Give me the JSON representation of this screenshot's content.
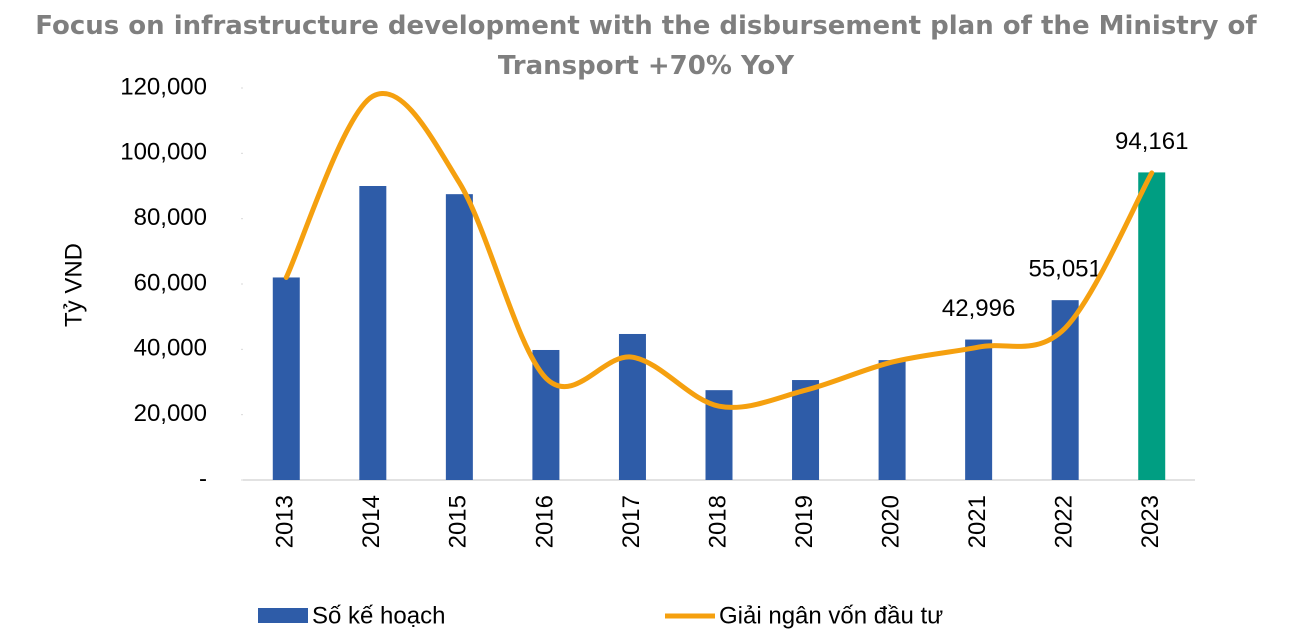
{
  "chart_data": {
    "type": "bar-line",
    "title": "Focus on infrastructure development with the disbursement plan of the Ministry of Transport +70% YoY",
    "ylabel": "Tỷ VND",
    "categories": [
      "2013",
      "2014",
      "2015",
      "2016",
      "2017",
      "2018",
      "2019",
      "2020",
      "2021",
      "2022",
      "2023"
    ],
    "series": [
      {
        "name": "Số kế hoạch",
        "type": "bar",
        "color": "#2e5ca8",
        "colors": [
          "#2e5ca8",
          "#2e5ca8",
          "#2e5ca8",
          "#2e5ca8",
          "#2e5ca8",
          "#2e5ca8",
          "#2e5ca8",
          "#2e5ca8",
          "#2e5ca8",
          "#2e5ca8",
          "#009e82"
        ],
        "values": [
          62000,
          90000,
          87500,
          39800,
          44700,
          27500,
          30600,
          36700,
          42996,
          55051,
          94161
        ],
        "value_labels": [
          null,
          null,
          null,
          null,
          null,
          null,
          null,
          null,
          "42,996",
          "55,051",
          "94,161"
        ]
      },
      {
        "name": "Giải ngân vốn đầu tư",
        "type": "line",
        "color": "#f5a00f",
        "values": [
          62000,
          117500,
          91000,
          31200,
          37600,
          22600,
          27500,
          36100,
          40700,
          46500,
          94000
        ]
      }
    ],
    "ylim": [
      0,
      120000
    ],
    "yticks": [
      {
        "value": 0,
        "label": "-"
      },
      {
        "value": 20000,
        "label": "20,000"
      },
      {
        "value": 40000,
        "label": "40,000"
      },
      {
        "value": 60000,
        "label": "60,000"
      },
      {
        "value": 80000,
        "label": "80,000"
      },
      {
        "value": 100000,
        "label": "100,000"
      },
      {
        "value": 120000,
        "label": "120,000"
      }
    ],
    "grid": false,
    "legend": "bottom"
  }
}
